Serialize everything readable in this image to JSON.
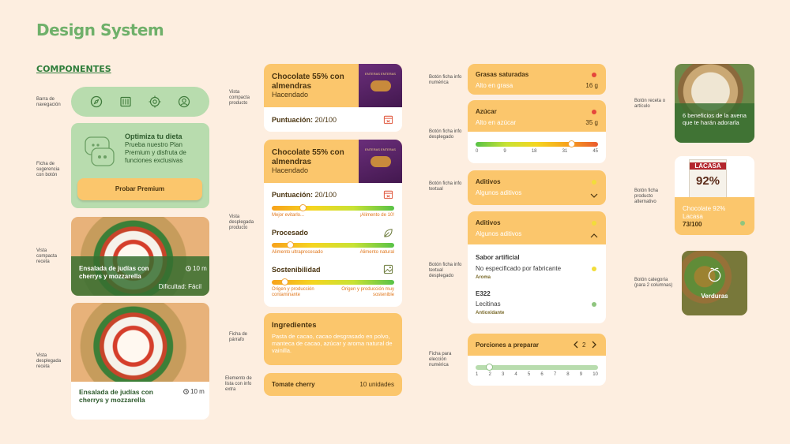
{
  "title": "Design System",
  "section": "COMPONENTES",
  "labels": {
    "navbar": "Barra de navegación",
    "suggestion": "Ficha de sugerencia con botón",
    "compact_recipe": "Vista compacta receta",
    "expanded_recipe": "Vista desplegada receta",
    "compact_product": "Vista compacta producto",
    "expanded_product": "Vista desplegada producto",
    "paragraph": "Ficha de párrafo",
    "list_item": "Elemento de lista con info extra",
    "numeric_info": "Botón ficha info numérica",
    "numeric_expanded": "Botón ficha info desplegado",
    "text_info": "Botón ficha info textual",
    "text_expanded": "Botón ficha info textual desplegado",
    "numeric_choice": "Ficha para elección numérica",
    "recipe_article": "Botón receta o artículo",
    "alt_product": "Botón ficha producto alternativo",
    "category": "Botón categoría (para 2 columnas)"
  },
  "navbar": {
    "icons": [
      "compass-icon",
      "fridge-icon",
      "target-icon",
      "profile-icon"
    ]
  },
  "suggestion": {
    "title": "Optimiza tu dieta",
    "text": "Prueba nuestro Plan Premium y disfruta de funciones exclusivas",
    "button": "Probar Premium"
  },
  "recipe_compact": {
    "name": "Ensalada de judías con cherrys y mozzarella",
    "time": "10 m",
    "difficulty": "Dificultad: Fácil"
  },
  "recipe_expanded": {
    "name": "Ensalada de judías con cherrys y mozzarella",
    "time": "10 m"
  },
  "product_compact": {
    "name": "Chocolate 55% con almendras",
    "brand": "Hacendado",
    "score_label": "Puntuación:",
    "score": "20/100",
    "pack_text": "ENTERAS ENTERAS"
  },
  "product_expanded": {
    "name": "Chocolate 55% con almendras",
    "brand": "Hacendado",
    "score_label": "Puntuación:",
    "score": "20/100",
    "pack_text": "ENTERAS ENTERAS",
    "score_bar": {
      "left": "Mejor evitarlo...",
      "right": "¡Alimento de 10!",
      "level": 0.25
    },
    "processed": {
      "title": "Procesado",
      "left": "Alimento ultraprocesado",
      "right": "Alimento natural",
      "level": 0.15
    },
    "sustainability": {
      "title": "Sostenibilidad",
      "left": "Origen y producción contaminante",
      "right": "Origen y producción muy sostenible",
      "level": 0.1
    }
  },
  "paragraph": {
    "title": "Ingredientes",
    "text": "Pasta de cacao, cacao desgrasado en polvo, manteca de cacao, azúcar y aroma natural de vainilla."
  },
  "list_item": {
    "name": "Tomate cherry",
    "qty": "10 unidades"
  },
  "sat_fats": {
    "title": "Grasas saturadas",
    "sub": "Alto en grasa",
    "value": "16 g",
    "status_color": "#e5463b"
  },
  "sugar": {
    "title": "Azúcar",
    "sub": "Alto en azúcar",
    "value": "35 g",
    "status_color": "#e5463b",
    "ticks": [
      "0",
      "9",
      "18",
      "31",
      "45"
    ],
    "level": 35
  },
  "additives": {
    "title": "Aditivos",
    "sub": "Algunos aditivos"
  },
  "additives_expanded": {
    "title": "Aditivos",
    "sub": "Algunos aditivos",
    "items": [
      {
        "name": "Sabor artificial",
        "desc": "No especificado por fabricante",
        "tag": "Aroma",
        "color": "#f2dd3a"
      },
      {
        "name": "E322",
        "desc": "Lecitinas",
        "tag": "Antioxidante",
        "color": "#8fc57f"
      }
    ]
  },
  "portions": {
    "title": "Porciones a preparar",
    "value": "2",
    "ticks": [
      "1",
      "2",
      "3",
      "4",
      "5",
      "6",
      "7",
      "8",
      "9",
      "10"
    ]
  },
  "article": {
    "text": "6 beneficios de la avena que te harán adorarla"
  },
  "alt_product": {
    "name": "Chocolate 92%",
    "brand": "Lacasa",
    "score": "73/100",
    "pack_brand": "LACASA",
    "pack_pct": "92%"
  },
  "category": {
    "name": "Verduras"
  },
  "colors": {
    "background": "#fdeee0",
    "green_card": "#b8dcae",
    "orange_card": "#fbc66c",
    "accent_green": "#2e7d3a"
  }
}
